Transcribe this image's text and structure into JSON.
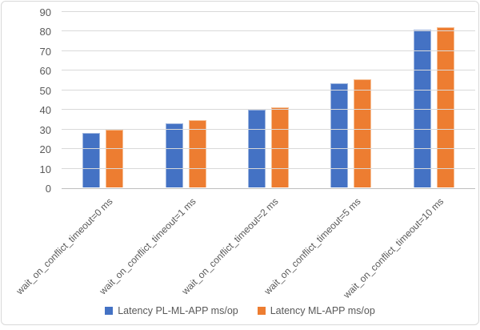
{
  "chart": {
    "background": "#FFFFFF",
    "border_color": "#D9D9D9",
    "gridline_color": "#D9D9D9",
    "axis_line_color": "#BFBFBF",
    "label_color": "#595959"
  },
  "chart_data": {
    "type": "bar",
    "title": "",
    "xlabel": "",
    "ylabel": "",
    "categories": [
      "wait_on_conflict_timeout=0 ms",
      "wait_on_conflict_timeout=1 ms",
      "wait_on_conflict_timeout=2 ms",
      "wait_on_conflict_timeout=5 ms",
      "wait_on_conflict_timeout=10 ms"
    ],
    "series": [
      {
        "name": "Latency PL-ML-APP ms/op",
        "color": "#4472C4",
        "edge_color": "#9FB6DF",
        "values": [
          28,
          33,
          40,
          53.5,
          81
        ]
      },
      {
        "name": "Latency ML-APP ms/op",
        "color": "#ED7D31",
        "edge_color": "#F5BE93",
        "values": [
          29.5,
          34.5,
          41,
          55.5,
          82
        ]
      }
    ],
    "ylim": [
      0,
      90
    ],
    "yticks": [
      0,
      10,
      20,
      30,
      40,
      50,
      60,
      70,
      80,
      90
    ],
    "grid": true,
    "legend_position": "bottom"
  }
}
